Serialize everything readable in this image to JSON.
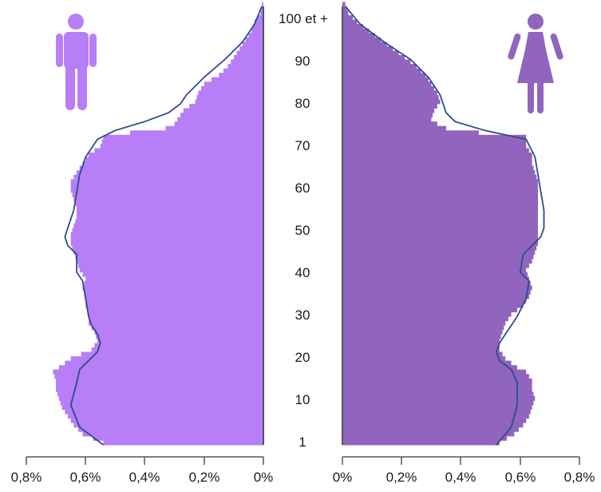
{
  "chart_data": {
    "type": "bar",
    "orientation": "horizontal",
    "subtype": "population-pyramid",
    "title": "",
    "xlabel": "",
    "ylabel": "",
    "age_ticks": [
      1,
      10,
      20,
      30,
      40,
      50,
      60,
      70,
      80,
      90,
      "100 et +"
    ],
    "age_range": [
      1,
      100
    ],
    "x_ticks_left": [
      "0,8%",
      "0,6%",
      "0,4%",
      "0,2%",
      "0%"
    ],
    "x_ticks_right": [
      "0%",
      "0,2%",
      "0,4%",
      "0,6%",
      "0,8%"
    ],
    "xlim": [
      0,
      0.8
    ],
    "unit": "%",
    "colors": {
      "men": "#b77ef7",
      "women": "#9164bd",
      "line": "#2b4c8c",
      "axis": "#555555"
    },
    "icons": {
      "men": "man-icon",
      "women": "woman-icon"
    },
    "grid": false,
    "series": [
      {
        "side": "left",
        "color": "#b77ef7",
        "ages": [
          1,
          3,
          5,
          7,
          9,
          11,
          13,
          15,
          17,
          18,
          20,
          22,
          24,
          26,
          28,
          30,
          32,
          34,
          36,
          38,
          40,
          42,
          44,
          46,
          48,
          50,
          52,
          54,
          56,
          58,
          60,
          62,
          64,
          66,
          68,
          70,
          71,
          72,
          73,
          74,
          76,
          78,
          80,
          82,
          84,
          86,
          88,
          90,
          92,
          94,
          96,
          98,
          100
        ],
        "values": [
          0.54,
          0.61,
          0.64,
          0.66,
          0.68,
          0.69,
          0.7,
          0.7,
          0.71,
          0.69,
          0.65,
          0.58,
          0.56,
          0.57,
          0.59,
          0.59,
          0.6,
          0.6,
          0.61,
          0.6,
          0.62,
          0.63,
          0.64,
          0.65,
          0.65,
          0.64,
          0.63,
          0.63,
          0.64,
          0.65,
          0.65,
          0.63,
          0.61,
          0.59,
          0.55,
          0.54,
          0.45,
          0.33,
          0.3,
          0.29,
          0.27,
          0.23,
          0.22,
          0.2,
          0.15,
          0.12,
          0.1,
          0.08,
          0.06,
          0.04,
          0.03,
          0.01,
          0.005
        ]
      },
      {
        "side": "right",
        "color": "#9164bd",
        "ages": [
          1,
          3,
          5,
          7,
          9,
          11,
          13,
          15,
          17,
          18,
          20,
          22,
          24,
          26,
          28,
          30,
          32,
          34,
          36,
          38,
          40,
          42,
          44,
          46,
          48,
          50,
          52,
          54,
          56,
          58,
          60,
          62,
          64,
          66,
          68,
          70,
          71,
          72,
          73,
          74,
          76,
          78,
          80,
          82,
          84,
          86,
          88,
          90,
          92,
          94,
          96,
          98,
          100
        ],
        "values": [
          0.53,
          0.58,
          0.61,
          0.63,
          0.64,
          0.65,
          0.64,
          0.64,
          0.62,
          0.59,
          0.55,
          0.53,
          0.53,
          0.54,
          0.55,
          0.57,
          0.61,
          0.63,
          0.64,
          0.63,
          0.62,
          0.64,
          0.65,
          0.66,
          0.66,
          0.66,
          0.66,
          0.66,
          0.66,
          0.66,
          0.66,
          0.65,
          0.64,
          0.64,
          0.62,
          0.62,
          0.46,
          0.35,
          0.32,
          0.3,
          0.31,
          0.33,
          0.32,
          0.3,
          0.28,
          0.25,
          0.21,
          0.17,
          0.13,
          0.09,
          0.05,
          0.02,
          0.01
        ]
      },
      {
        "side": "left",
        "kind": "line",
        "color": "#2b4c8c",
        "ages": [
          1,
          5,
          10,
          15,
          18,
          20,
          22,
          24,
          26,
          28,
          30,
          34,
          38,
          40,
          44,
          46,
          48,
          50,
          54,
          58,
          62,
          66,
          70,
          72,
          74,
          76,
          78,
          80,
          84,
          88,
          92,
          96,
          100
        ],
        "values": [
          0.54,
          0.62,
          0.65,
          0.63,
          0.62,
          0.59,
          0.56,
          0.55,
          0.56,
          0.58,
          0.59,
          0.6,
          0.61,
          0.63,
          0.63,
          0.66,
          0.67,
          0.66,
          0.64,
          0.63,
          0.62,
          0.6,
          0.56,
          0.5,
          0.4,
          0.32,
          0.28,
          0.26,
          0.2,
          0.13,
          0.07,
          0.03,
          0.005
        ]
      },
      {
        "side": "right",
        "kind": "line",
        "color": "#2b4c8c",
        "ages": [
          1,
          5,
          10,
          15,
          18,
          20,
          22,
          24,
          26,
          30,
          34,
          38,
          40,
          44,
          46,
          48,
          50,
          54,
          58,
          62,
          66,
          70,
          72,
          74,
          76,
          78,
          80,
          84,
          88,
          92,
          96,
          100
        ],
        "values": [
          0.52,
          0.57,
          0.59,
          0.59,
          0.57,
          0.53,
          0.52,
          0.53,
          0.55,
          0.59,
          0.62,
          0.63,
          0.6,
          0.61,
          0.64,
          0.67,
          0.68,
          0.68,
          0.67,
          0.66,
          0.65,
          0.62,
          0.48,
          0.38,
          0.35,
          0.34,
          0.33,
          0.29,
          0.23,
          0.14,
          0.06,
          0.01
        ]
      }
    ]
  }
}
